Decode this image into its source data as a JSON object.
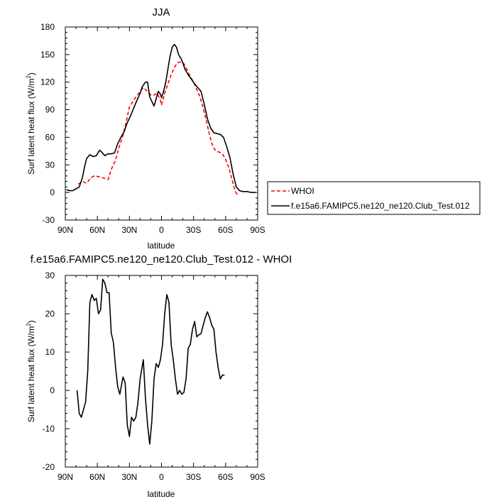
{
  "chart_data": [
    {
      "type": "line",
      "title": "JJA",
      "xlabel": "latitude",
      "ylabel": "Surf latent heat flux (W/m",
      "ylabel_sup": "2",
      "ylabel_close": ")",
      "xlim": [
        90,
        -90
      ],
      "ylim": [
        -30,
        180
      ],
      "xticks": [
        90,
        60,
        30,
        0,
        -30,
        -60,
        -90
      ],
      "xtick_labels": [
        "90N",
        "60N",
        "30N",
        "0",
        "30S",
        "60S",
        "90S"
      ],
      "yticks": [
        -30,
        0,
        30,
        60,
        90,
        120,
        150,
        180
      ],
      "ytick_labels": [
        "-30",
        "0",
        "30",
        "60",
        "90",
        "120",
        "150",
        "180"
      ],
      "legend_position": "right of plot, near bottom",
      "series": [
        {
          "name": "WHOI",
          "color": "#ff0000",
          "dash": "dashed",
          "points": [
            [
              78,
              9
            ],
            [
              74,
              12
            ],
            [
              70,
              10
            ],
            [
              66,
              16
            ],
            [
              63,
              18
            ],
            [
              58,
              17
            ],
            [
              55,
              16
            ],
            [
              50,
              14
            ],
            [
              47,
              25
            ],
            [
              43,
              35
            ],
            [
              40,
              48
            ],
            [
              36,
              62
            ],
            [
              33,
              77
            ],
            [
              30,
              93
            ],
            [
              25,
              102
            ],
            [
              20,
              110
            ],
            [
              17,
              114
            ],
            [
              13,
              110
            ],
            [
              10,
              106
            ],
            [
              7,
              106
            ],
            [
              4,
              108
            ],
            [
              1,
              100
            ],
            [
              0,
              95
            ],
            [
              -3,
              108
            ],
            [
              -6,
              118
            ],
            [
              -9,
              128
            ],
            [
              -12,
              136
            ],
            [
              -15,
              141
            ],
            [
              -18,
              142
            ],
            [
              -21,
              140
            ],
            [
              -24,
              133
            ],
            [
              -27,
              126
            ],
            [
              -30,
              120
            ],
            [
              -33,
              112
            ],
            [
              -36,
              104
            ],
            [
              -39,
              92
            ],
            [
              -42,
              78
            ],
            [
              -45,
              62
            ],
            [
              -48,
              50
            ],
            [
              -51,
              45
            ],
            [
              -54,
              44
            ],
            [
              -57,
              42
            ],
            [
              -60,
              36
            ],
            [
              -63,
              27
            ],
            [
              -66,
              14
            ],
            [
              -68,
              5
            ],
            [
              -70,
              -1
            ],
            [
              -71,
              -2
            ]
          ]
        },
        {
          "name": "f.e15a6.FAMIPC5.ne120_ne120.Club_Test.012",
          "color": "#000000",
          "dash": "solid",
          "points": [
            [
              89,
              3
            ],
            [
              86,
              2
            ],
            [
              83,
              2
            ],
            [
              80,
              4
            ],
            [
              77,
              6
            ],
            [
              74,
              16
            ],
            [
              72,
              28
            ],
            [
              70,
              37
            ],
            [
              67,
              41
            ],
            [
              64,
              39
            ],
            [
              61,
              40
            ],
            [
              58,
              46
            ],
            [
              56,
              44
            ],
            [
              53,
              40
            ],
            [
              50,
              42
            ],
            [
              47,
              42
            ],
            [
              44,
              43
            ],
            [
              41,
              53
            ],
            [
              38,
              60
            ],
            [
              35,
              66
            ],
            [
              32,
              76
            ],
            [
              29,
              83
            ],
            [
              26,
              92
            ],
            [
              23,
              100
            ],
            [
              20,
              108
            ],
            [
              18,
              115
            ],
            [
              15,
              120
            ],
            [
              13,
              120
            ],
            [
              11,
              104
            ],
            [
              9,
              99
            ],
            [
              7,
              94
            ],
            [
              5,
              102
            ],
            [
              3,
              110
            ],
            [
              1,
              107
            ],
            [
              0,
              103
            ],
            [
              -2,
              110
            ],
            [
              -4,
              120
            ],
            [
              -6,
              134
            ],
            [
              -8,
              148
            ],
            [
              -10,
              158
            ],
            [
              -12,
              161
            ],
            [
              -14,
              158
            ],
            [
              -16,
              150
            ],
            [
              -19,
              144
            ],
            [
              -22,
              134
            ],
            [
              -25,
              128
            ],
            [
              -28,
              123
            ],
            [
              -31,
              118
            ],
            [
              -34,
              114
            ],
            [
              -37,
              110
            ],
            [
              -40,
              96
            ],
            [
              -43,
              80
            ],
            [
              -46,
              70
            ],
            [
              -49,
              65
            ],
            [
              -52,
              64
            ],
            [
              -55,
              63
            ],
            [
              -58,
              60
            ],
            [
              -61,
              50
            ],
            [
              -64,
              38
            ],
            [
              -67,
              20
            ],
            [
              -70,
              6
            ],
            [
              -73,
              2
            ],
            [
              -76,
              1
            ],
            [
              -80,
              1
            ],
            [
              -84,
              0
            ],
            [
              -88,
              0
            ]
          ]
        }
      ]
    },
    {
      "type": "line",
      "title": "f.e15a6.FAMIPC5.ne120_ne120.Club_Test.012 - WHOI",
      "xlabel": "latitude",
      "ylabel": "Surf latent heat flux (W/m",
      "ylabel_sup": "2",
      "ylabel_close": ")",
      "xlim": [
        90,
        -90
      ],
      "ylim": [
        -20,
        30
      ],
      "xticks": [
        90,
        60,
        30,
        0,
        -30,
        -60,
        -90
      ],
      "xtick_labels": [
        "90N",
        "60N",
        "30N",
        "0",
        "30S",
        "60S",
        "90S"
      ],
      "yticks": [
        -20,
        -10,
        0,
        10,
        20,
        30
      ],
      "ytick_labels": [
        "-20",
        "-10",
        "0",
        "10",
        "20",
        "30"
      ],
      "series": [
        {
          "color": "#000000",
          "dash": "solid",
          "points": [
            [
              79,
              0
            ],
            [
              77,
              -6
            ],
            [
              75,
              -7
            ],
            [
              73,
              -5
            ],
            [
              71,
              -3
            ],
            [
              69,
              5
            ],
            [
              67,
              23
            ],
            [
              65,
              25
            ],
            [
              63,
              23.5
            ],
            [
              61,
              24
            ],
            [
              59,
              20
            ],
            [
              57,
              21
            ],
            [
              55,
              29
            ],
            [
              53,
              28
            ],
            [
              51,
              25.5
            ],
            [
              49,
              25.5
            ],
            [
              47,
              15
            ],
            [
              45,
              12.5
            ],
            [
              43,
              6
            ],
            [
              41,
              1
            ],
            [
              39,
              -1
            ],
            [
              36,
              3.5
            ],
            [
              34,
              2
            ],
            [
              32,
              -9
            ],
            [
              30,
              -12
            ],
            [
              28,
              -7
            ],
            [
              26,
              -8
            ],
            [
              24,
              -7
            ],
            [
              22,
              -3
            ],
            [
              20,
              3
            ],
            [
              17,
              8
            ],
            [
              15,
              -2
            ],
            [
              13,
              -9
            ],
            [
              11,
              -14
            ],
            [
              9,
              -8
            ],
            [
              7,
              3
            ],
            [
              5,
              7
            ],
            [
              3,
              6
            ],
            [
              1,
              8
            ],
            [
              -1,
              12
            ],
            [
              -3,
              20
            ],
            [
              -5,
              25
            ],
            [
              -7,
              23
            ],
            [
              -9,
              12
            ],
            [
              -11,
              8
            ],
            [
              -13,
              3
            ],
            [
              -15,
              -1
            ],
            [
              -17,
              0
            ],
            [
              -19,
              -1
            ],
            [
              -21,
              -0.5
            ],
            [
              -23,
              3
            ],
            [
              -25,
              11
            ],
            [
              -27,
              12
            ],
            [
              -29,
              16
            ],
            [
              -31,
              18
            ],
            [
              -33,
              14
            ],
            [
              -35,
              14.5
            ],
            [
              -37,
              14.8
            ],
            [
              -39,
              17
            ],
            [
              -41,
              19
            ],
            [
              -43,
              20.5
            ],
            [
              -45,
              19
            ],
            [
              -47,
              17
            ],
            [
              -49,
              16
            ],
            [
              -51,
              10
            ],
            [
              -53,
              6
            ],
            [
              -55,
              3
            ],
            [
              -57,
              4
            ],
            [
              -59,
              4
            ]
          ]
        }
      ]
    }
  ]
}
